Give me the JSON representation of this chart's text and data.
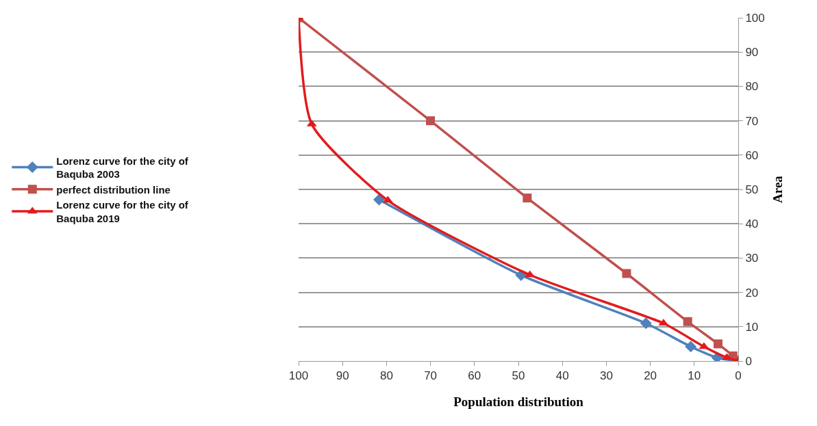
{
  "chart_data": {
    "type": "line",
    "xlabel": "Population distribution",
    "ylabel": "Area",
    "xlim": [
      100,
      0
    ],
    "xticks": [
      100,
      90,
      80,
      70,
      60,
      50,
      40,
      30,
      20,
      10,
      0
    ],
    "ylim": [
      0,
      100
    ],
    "yticks": [
      0,
      10,
      20,
      30,
      40,
      50,
      60,
      70,
      80,
      90,
      100
    ],
    "grid": "y",
    "legend": "left",
    "series": [
      {
        "name": "Lorenz curve for the city of Baquba 2003",
        "color": "#4f81bd",
        "marker": "diamond",
        "x": [
          81.7,
          49.4,
          21,
          10.8,
          4.8,
          0
        ],
        "values": [
          47,
          25,
          11,
          4.2,
          1,
          0
        ]
      },
      {
        "name": "perfect distribution line",
        "color": "#c0504d",
        "marker": "square",
        "x": [
          100,
          70,
          48,
          25.4,
          11.5,
          4.6,
          1.2,
          0
        ],
        "values": [
          100,
          70,
          47.5,
          25.5,
          11.5,
          5,
          1.5,
          0
        ]
      },
      {
        "name": "Lorenz curve for the city of Baquba 2019",
        "color": "#e31a1c",
        "marker": "triangle",
        "x": [
          100,
          97,
          79.7,
          47.4,
          17,
          7.8,
          2.6,
          0
        ],
        "values": [
          100,
          69,
          46.8,
          25.1,
          11,
          4.2,
          1,
          0
        ]
      }
    ]
  }
}
